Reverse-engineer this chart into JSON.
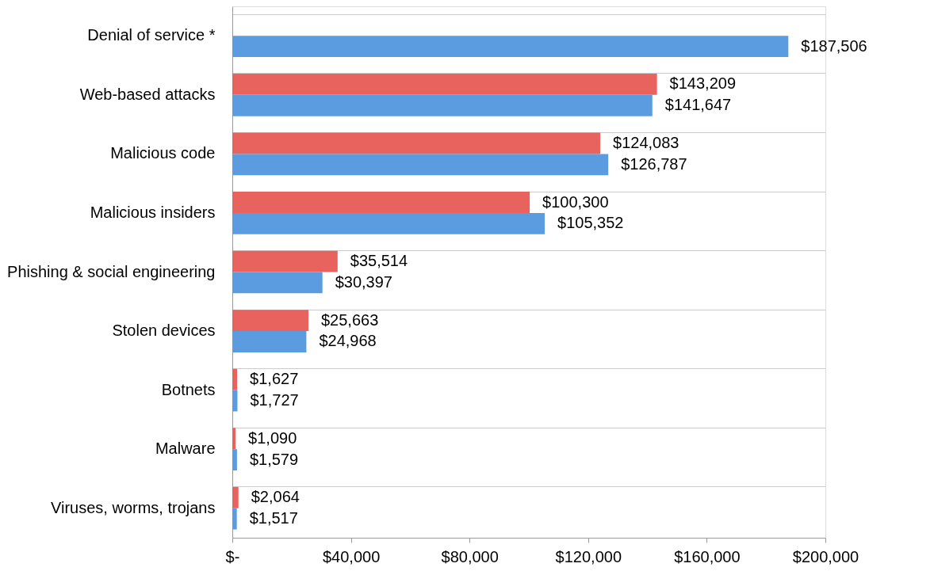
{
  "chart_data": {
    "type": "bar",
    "orientation": "horizontal",
    "categories": [
      "Denial of service *",
      "Web-based attacks",
      "Malicious code",
      "Malicious insiders",
      "Phishing & social engineering",
      "Stolen devices",
      "Botnets",
      "Malware",
      "Viruses, worms, trojans"
    ],
    "series": [
      {
        "color": "#e8625e",
        "values": [
          null,
          143209,
          124083,
          100300,
          35514,
          25663,
          1627,
          1090,
          2064
        ],
        "value_labels": [
          null,
          "$143,209",
          "$124,083",
          "$100,300",
          "$35,514",
          "$25,663",
          "$1,627",
          "$1,090",
          "$2,064"
        ]
      },
      {
        "color": "#5b9be0",
        "values": [
          187506,
          141647,
          126787,
          105352,
          30397,
          24968,
          1727,
          1579,
          1517
        ],
        "value_labels": [
          "$187,506",
          "$141,647",
          "$126,787",
          "$105,352",
          "$30,397",
          "$24,968",
          "$1,727",
          "$1,579",
          "$1,517"
        ]
      }
    ],
    "xlim": [
      0,
      200000
    ],
    "xticks": [
      {
        "value": 0,
        "label": "$-"
      },
      {
        "value": 40000,
        "label": "$40,000"
      },
      {
        "value": 80000,
        "label": "$80,000"
      },
      {
        "value": 120000,
        "label": "$120,000"
      },
      {
        "value": 160000,
        "label": "$160,000"
      },
      {
        "value": 200000,
        "label": "$200,000"
      }
    ],
    "grid": "y"
  }
}
